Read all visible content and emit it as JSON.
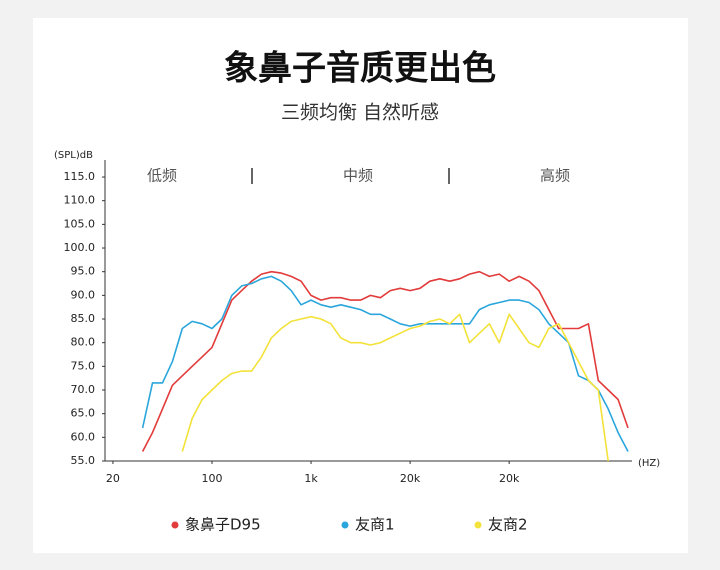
{
  "chart_data": {
    "type": "line",
    "title": "象鼻子音质更出色",
    "subtitle": "三频均衡 自然听感",
    "y_label": "(SPL)dB",
    "x_label": "(HZ)",
    "bands": [
      "低频",
      "中频",
      "高频"
    ],
    "xlim": [
      -0.08,
      5.24
    ],
    "xticks": [
      {
        "value": 0,
        "label": "20"
      },
      {
        "value": 1,
        "label": "100"
      },
      {
        "value": 2,
        "label": "1k"
      },
      {
        "value": 3,
        "label": "20k"
      },
      {
        "value": 4,
        "label": "20k"
      }
    ],
    "ylim": [
      55,
      118.6
    ],
    "yticks": [
      {
        "value": 55,
        "label": "55.0"
      },
      {
        "value": 60,
        "label": "60.0"
      },
      {
        "value": 65,
        "label": "65.0"
      },
      {
        "value": 70,
        "label": "70.0"
      },
      {
        "value": 75,
        "label": "75.0"
      },
      {
        "value": 80,
        "label": "80.0"
      },
      {
        "value": 85,
        "label": "85.0"
      },
      {
        "value": 90,
        "label": "90.0"
      },
      {
        "value": 95,
        "label": "95.0"
      },
      {
        "value": 100,
        "label": "100.0"
      },
      {
        "value": 105,
        "label": "105.0"
      },
      {
        "value": 110,
        "label": "110.0"
      },
      {
        "value": 115,
        "label": "115.0"
      }
    ],
    "x": [
      0.3,
      0.4,
      0.5,
      0.6,
      0.7,
      0.8,
      0.9,
      1.0,
      1.1,
      1.2,
      1.3,
      1.4,
      1.5,
      1.6,
      1.7,
      1.8,
      1.9,
      2.0,
      2.1,
      2.2,
      2.3,
      2.4,
      2.5,
      2.6,
      2.7,
      2.8,
      2.9,
      3.0,
      3.1,
      3.2,
      3.3,
      3.4,
      3.5,
      3.6,
      3.7,
      3.8,
      3.9,
      4.0,
      4.1,
      4.2,
      4.3,
      4.4,
      4.5,
      4.6,
      4.7,
      4.8,
      4.9,
      5.0,
      5.1,
      5.2
    ],
    "series": [
      {
        "name": "象鼻子D95",
        "color": "#e23b3b",
        "values": [
          57,
          61,
          66,
          71,
          73,
          75,
          77,
          79,
          84,
          89,
          91,
          93,
          94.5,
          95,
          94.7,
          94,
          93,
          90,
          89,
          89.5,
          89.5,
          89,
          89,
          90,
          89.5,
          91,
          91.5,
          91,
          91.5,
          93,
          93.5,
          93,
          93.5,
          94.5,
          95,
          94,
          94.5,
          93,
          94,
          93,
          91,
          87,
          83,
          83,
          83,
          84,
          72,
          70,
          68,
          62
        ]
      },
      {
        "name": "友商1",
        "color": "#2aa6dc",
        "values": [
          62,
          71.5,
          71.5,
          76,
          83,
          84.5,
          84,
          83,
          85,
          90,
          92,
          92.5,
          93.5,
          94,
          93,
          91,
          88,
          89,
          88,
          87.5,
          88,
          87.5,
          87,
          86,
          86,
          85,
          84,
          83.5,
          84,
          84,
          84,
          84,
          84,
          84,
          87,
          88,
          88.5,
          89,
          89,
          88.5,
          87,
          84,
          82,
          80,
          73,
          72,
          70,
          66,
          61,
          57
        ]
      },
      {
        "name": "友商2",
        "color": "#f3e23a",
        "values": [
          null,
          null,
          null,
          null,
          57,
          64,
          68,
          70,
          72,
          73.5,
          74,
          74,
          77,
          81,
          83,
          84.5,
          85,
          85.5,
          85,
          84,
          81,
          80,
          80,
          79.5,
          80,
          81,
          82,
          83,
          83.5,
          84.5,
          85,
          84,
          86,
          80,
          82,
          84,
          80,
          86,
          83,
          80,
          79,
          83,
          84,
          80,
          76,
          72,
          70,
          55,
          null,
          null
        ]
      }
    ]
  }
}
